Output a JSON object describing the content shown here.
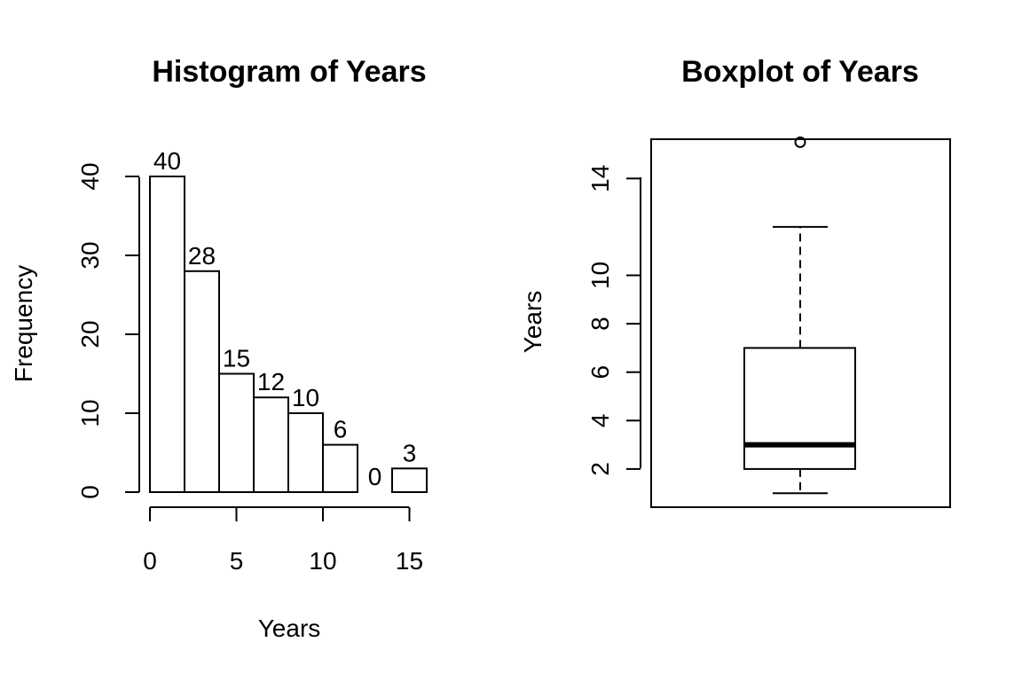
{
  "chart_data": [
    {
      "type": "bar",
      "title": "Histogram of Years",
      "xlabel": "Years",
      "ylabel": "Frequency",
      "bin_edges": [
        0,
        2,
        4,
        6,
        8,
        10,
        12,
        14,
        16
      ],
      "values": [
        40,
        28,
        15,
        12,
        10,
        6,
        0,
        3
      ],
      "data_labels": [
        "40",
        "28",
        "15",
        "12",
        "10",
        "6",
        "0",
        "3"
      ],
      "xlim": [
        0,
        16
      ],
      "ylim": [
        0,
        40
      ],
      "x_ticks": [
        0,
        5,
        10,
        15
      ],
      "x_tick_labels": [
        "0",
        "5",
        "10",
        "15"
      ],
      "y_ticks": [
        0,
        10,
        20,
        30,
        40
      ],
      "y_tick_labels": [
        "0",
        "10",
        "20",
        "30",
        "40"
      ],
      "grid": false
    },
    {
      "type": "boxplot",
      "title": "Boxplot of Years",
      "ylabel": "Years",
      "ylim": [
        1,
        16
      ],
      "lower_whisker": 1,
      "q1": 2,
      "median": 3,
      "q3": 7,
      "upper_whisker": 12,
      "outliers": [
        15.5
      ],
      "y_ticks": [
        2,
        4,
        6,
        8,
        10,
        14
      ],
      "y_tick_labels": [
        "2",
        "4",
        "6",
        "8",
        "10",
        "14"
      ],
      "grid": false
    }
  ]
}
